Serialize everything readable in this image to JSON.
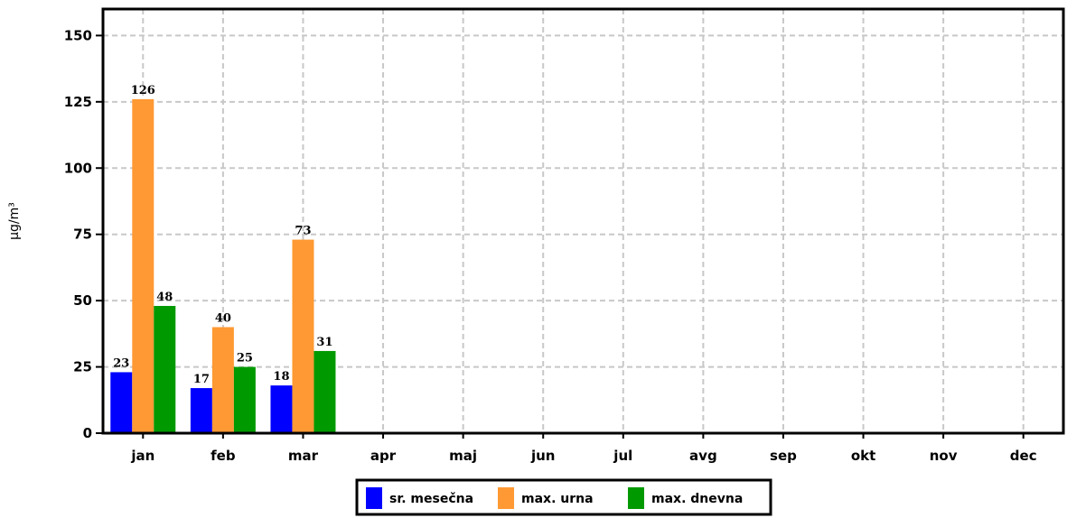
{
  "chart_data": {
    "type": "bar",
    "categories": [
      "jan",
      "feb",
      "mar",
      "apr",
      "maj",
      "jun",
      "jul",
      "avg",
      "sep",
      "okt",
      "nov",
      "dec"
    ],
    "series": [
      {
        "name": "sr. mesečna",
        "color": "#0000ff",
        "values": [
          23,
          17,
          18,
          null,
          null,
          null,
          null,
          null,
          null,
          null,
          null,
          null
        ]
      },
      {
        "name": "max. urna",
        "color": "#ff9933",
        "values": [
          126,
          40,
          73,
          null,
          null,
          null,
          null,
          null,
          null,
          null,
          null,
          null
        ]
      },
      {
        "name": "max. dnevna",
        "color": "#009900",
        "values": [
          48,
          25,
          31,
          null,
          null,
          null,
          null,
          null,
          null,
          null,
          null,
          null
        ]
      }
    ],
    "ylabel": "µg/m³",
    "ylim": [
      0,
      160
    ],
    "yticks": [
      0,
      25,
      50,
      75,
      100,
      125,
      150
    ],
    "grid": true,
    "legend": "bottom-center"
  }
}
